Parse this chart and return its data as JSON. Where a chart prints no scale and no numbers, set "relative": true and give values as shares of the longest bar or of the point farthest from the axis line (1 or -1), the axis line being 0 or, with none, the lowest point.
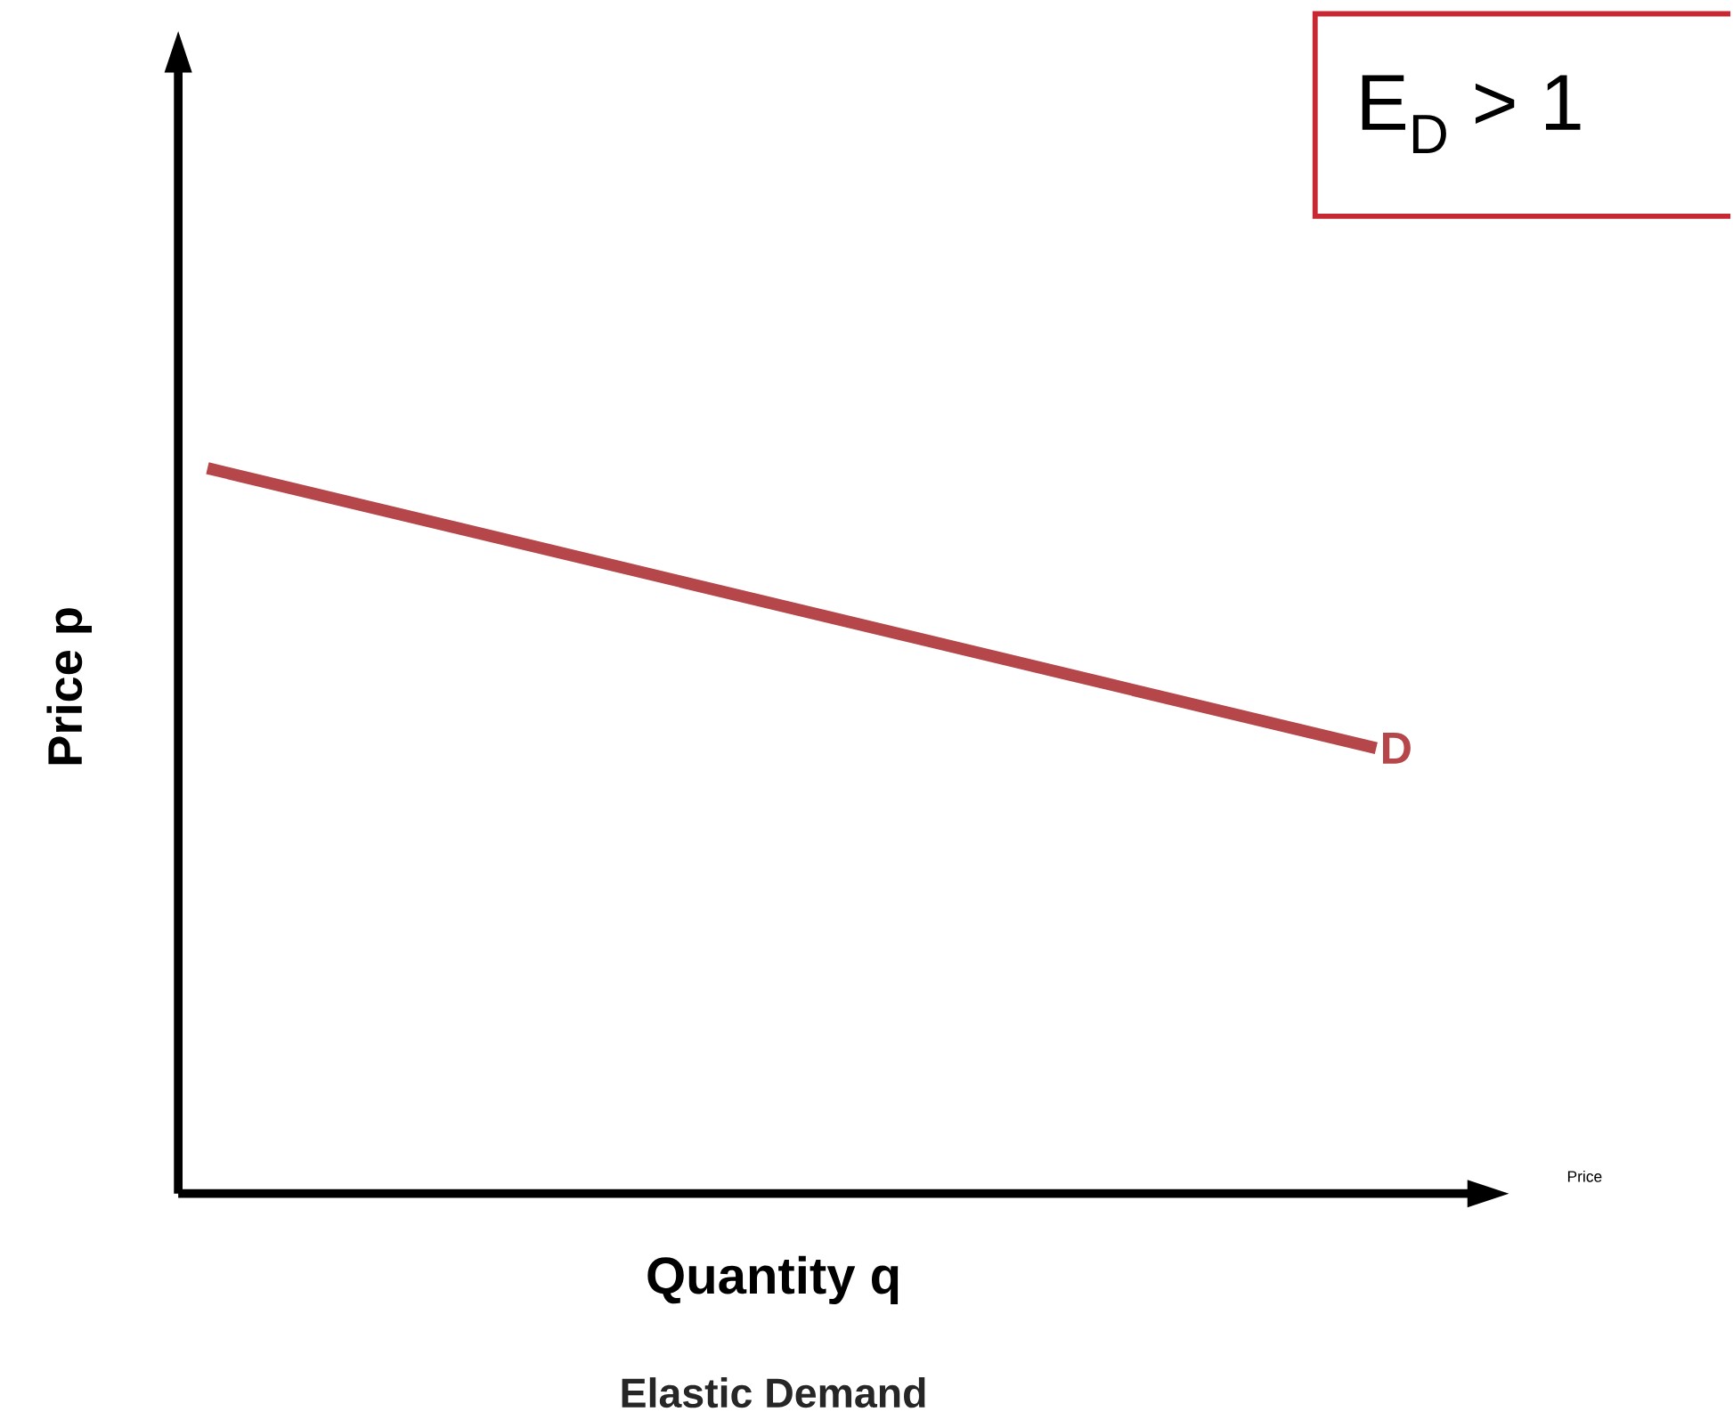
{
  "chart_data": {
    "type": "line",
    "relative": true,
    "xlabel": "Quantity q",
    "ylabel": "Price p",
    "title": "Elastic Demand",
    "categories": [
      null,
      null
    ],
    "series": [
      {
        "name": "D",
        "color": "#b5474a",
        "values": [
          1,
          0.614
        ]
      }
    ],
    "annotations": [
      "E$_{D}$ > 1",
      "Price"
    ]
  }
}
